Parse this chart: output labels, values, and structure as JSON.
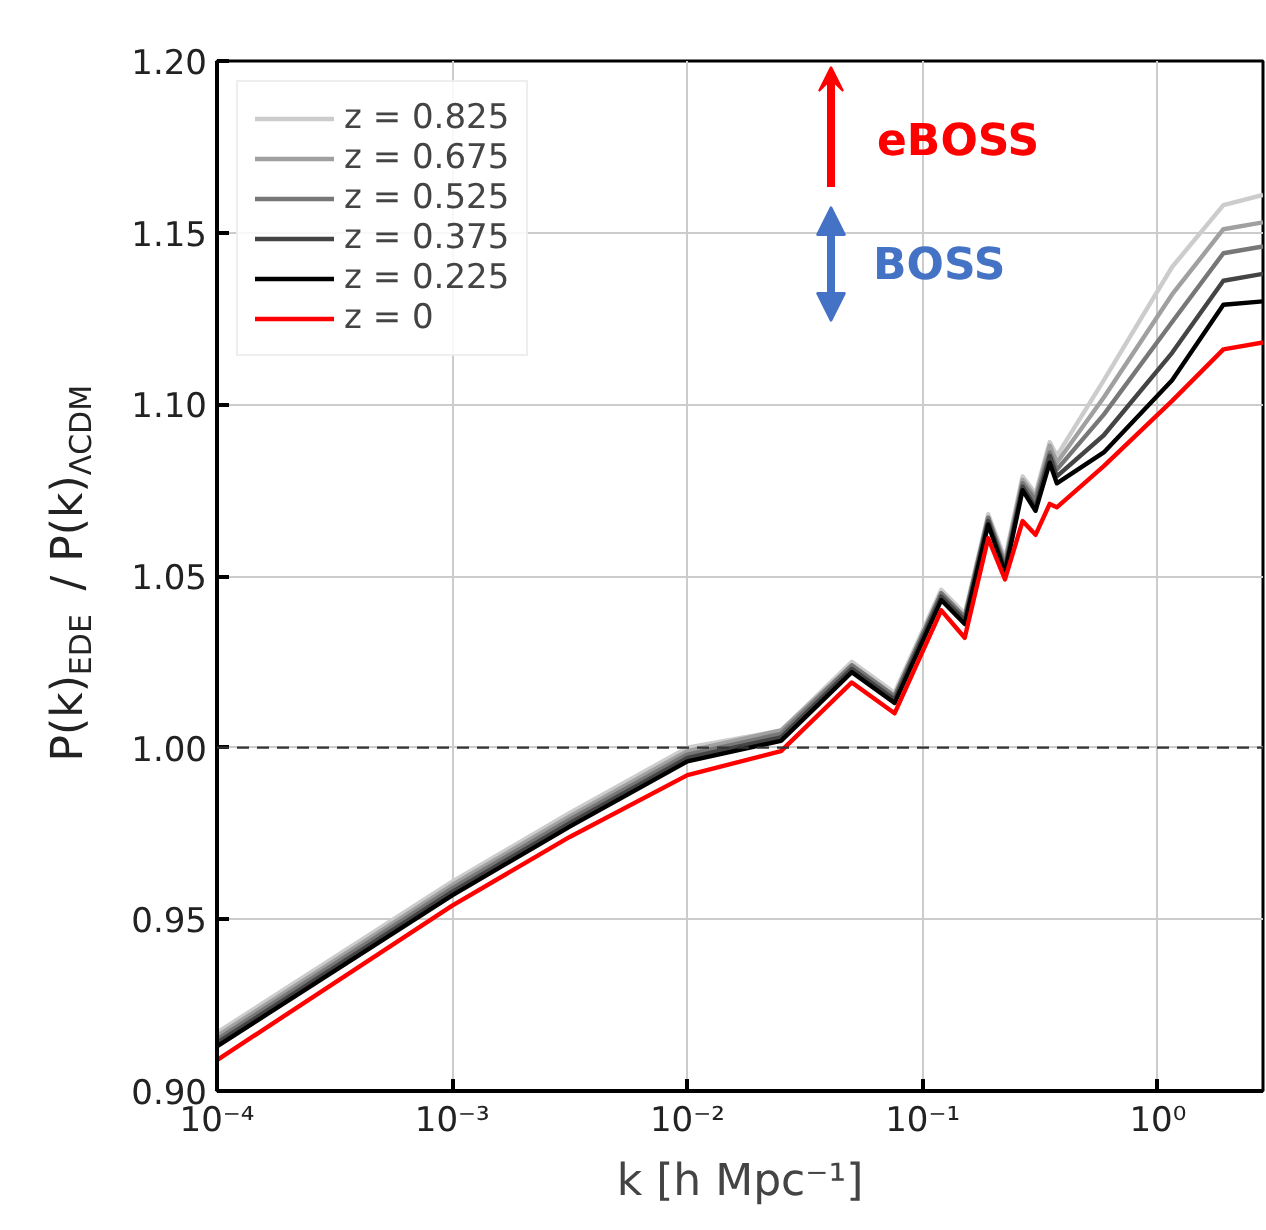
{
  "chart_data": {
    "type": "line",
    "xlabel": "k [h Mpc⁻¹]",
    "ylabel": "P(k)$_{EDE}$ / P(k)$_{ΛCDM}$",
    "x": [
      0.0001,
      0.001,
      0.00316,
      0.01,
      0.025,
      0.05,
      0.076,
      0.12,
      0.151,
      0.19,
      0.224,
      0.266,
      0.302,
      0.347,
      0.372,
      0.589,
      1.15,
      1.9,
      2.8
    ],
    "series": [
      {
        "name": "z = 0.825",
        "color": "#cccccc",
        "values": [
          0.917,
          0.961,
          0.981,
          1.0,
          1.005,
          1.025,
          1.016,
          1.046,
          1.039,
          1.068,
          1.055,
          1.079,
          1.074,
          1.089,
          1.085,
          1.107,
          1.14,
          1.158,
          1.161
        ]
      },
      {
        "name": "z = 0.675",
        "color": "#a0a0a0",
        "values": [
          0.916,
          0.96,
          0.98,
          0.999,
          1.005,
          1.024,
          1.015,
          1.045,
          1.038,
          1.067,
          1.054,
          1.078,
          1.073,
          1.088,
          1.083,
          1.102,
          1.132,
          1.151,
          1.153
        ]
      },
      {
        "name": "z = 0.525",
        "color": "#777777",
        "values": [
          0.915,
          0.959,
          0.979,
          0.998,
          1.004,
          1.024,
          1.015,
          1.045,
          1.038,
          1.067,
          1.053,
          1.077,
          1.072,
          1.086,
          1.081,
          1.097,
          1.124,
          1.144,
          1.146
        ]
      },
      {
        "name": "z = 0.375",
        "color": "#444444",
        "values": [
          0.914,
          0.958,
          0.978,
          0.997,
          1.003,
          1.023,
          1.014,
          1.044,
          1.037,
          1.066,
          1.052,
          1.076,
          1.07,
          1.085,
          1.079,
          1.091,
          1.115,
          1.136,
          1.138
        ]
      },
      {
        "name": "z = 0.225",
        "color": "#000000",
        "values": [
          0.913,
          0.957,
          0.977,
          0.996,
          1.002,
          1.022,
          1.013,
          1.043,
          1.036,
          1.065,
          1.051,
          1.075,
          1.069,
          1.083,
          1.077,
          1.086,
          1.107,
          1.129,
          1.13
        ]
      },
      {
        "name": "z = 0",
        "color": "#ff0000",
        "values": [
          0.909,
          0.954,
          0.974,
          0.992,
          0.999,
          1.019,
          1.01,
          1.04,
          1.032,
          1.061,
          1.049,
          1.066,
          1.062,
          1.071,
          1.07,
          1.082,
          1.101,
          1.116,
          1.118
        ]
      }
    ],
    "log": "x",
    "xlim": [
      0.0001,
      2.8
    ],
    "xticks": [
      {
        "value": 0.0001,
        "label": "10⁻⁴"
      },
      {
        "value": 0.001,
        "label": "10⁻³"
      },
      {
        "value": 0.01,
        "label": "10⁻²"
      },
      {
        "value": 0.1,
        "label": "10⁻¹"
      },
      {
        "value": 1,
        "label": "10⁰"
      }
    ],
    "ylim": [
      0.9,
      1.2
    ],
    "yticks": [
      {
        "value": 0.9,
        "label": "0.90"
      },
      0.95,
      {
        "value": 1.0,
        "label": "1.00"
      },
      1.05,
      {
        "value": 1.1,
        "label": "1.10"
      },
      1.15,
      {
        "value": 1.2,
        "label": "1.20"
      }
    ],
    "ref_lines": [
      {
        "axis": "y",
        "value": 1.0,
        "color": "#333333",
        "line_style": "dashed"
      }
    ],
    "annotations": [
      "eBOSS",
      "BOSS"
    ],
    "grid": true,
    "legend": "top left",
    "line_style": "solid"
  }
}
